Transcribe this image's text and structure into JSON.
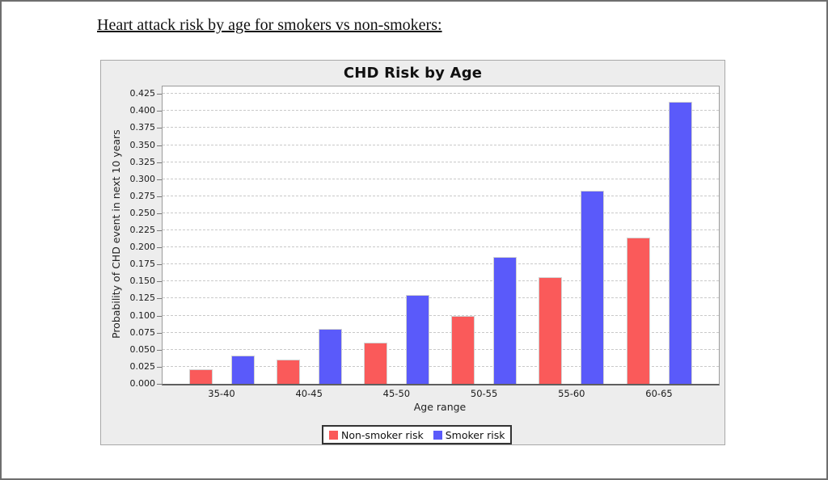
{
  "page": {
    "heading": "Heart attack risk by age for smokers vs non-smokers:"
  },
  "chart_data": {
    "type": "bar",
    "title": "CHD Risk by Age",
    "xlabel": "Age range",
    "ylabel": "Probability of CHD event in next 10 years",
    "categories": [
      "35-40",
      "40-45",
      "45-50",
      "50-55",
      "55-60",
      "60-65"
    ],
    "series": [
      {
        "name": "Non-smoker risk",
        "color": "#FA5A5A",
        "values": [
          0.021,
          0.035,
          0.06,
          0.1,
          0.156,
          0.214
        ]
      },
      {
        "name": "Smoker risk",
        "color": "#5A5AFA",
        "values": [
          0.042,
          0.081,
          0.13,
          0.186,
          0.283,
          0.414
        ]
      }
    ],
    "ylim": [
      0,
      0.436
    ],
    "ytick_step": 0.025,
    "ytick_max": 0.425,
    "ytick_format_decimals": 3,
    "grid": "horizontal-dashed",
    "legend_position": "bottom"
  }
}
